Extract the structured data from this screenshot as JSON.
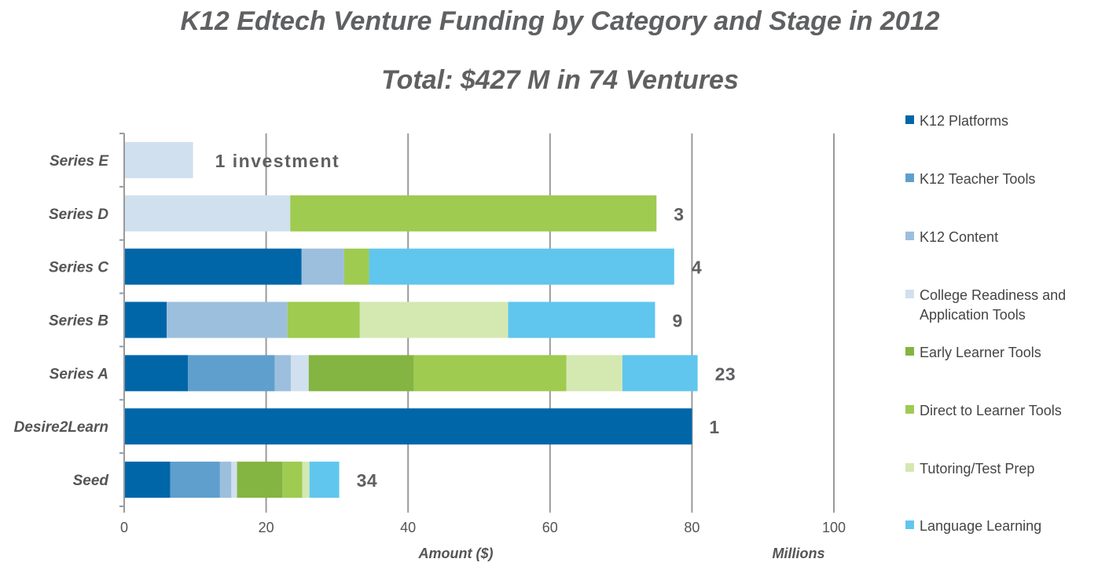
{
  "title": "K12 Edtech Venture Funding by Category and Stage in 2012",
  "subtitle": "Total: $427 M in 74 Ventures",
  "chart_data": {
    "type": "bar",
    "orientation": "horizontal",
    "stacked": true,
    "title": "K12 Edtech Venture Funding by Category and Stage in 2012",
    "subtitle": "Total: $427 M in 74 Ventures",
    "xlabel": "Amount ($)",
    "x_unit_label": "Millions",
    "xlim": [
      0,
      100
    ],
    "xticks": [
      0,
      20,
      40,
      60,
      80,
      100
    ],
    "grid": "vertical",
    "legend_position": "right",
    "categories": [
      "Series E",
      "Series D",
      "Series C",
      "Series B",
      "Series A",
      "Desire2Learn",
      "Seed"
    ],
    "count_labels": [
      "1 investment",
      "3",
      "4",
      "9",
      "23",
      "1",
      "34"
    ],
    "series": [
      {
        "name": "K12 Platforms",
        "color": "#0066a8",
        "values": [
          0,
          0,
          25,
          6,
          9,
          80,
          6.5
        ]
      },
      {
        "name": "K12 Teacher Tools",
        "color": "#5f9fcd",
        "values": [
          0,
          0,
          0,
          0,
          12.2,
          0,
          7
        ]
      },
      {
        "name": "K12 Content",
        "color": "#9cbfdd",
        "values": [
          0,
          0,
          6,
          17,
          2.3,
          0,
          1.6
        ]
      },
      {
        "name": "College Readiness and Application Tools",
        "color": "#d0e0ee",
        "values": [
          9.7,
          23.4,
          0,
          0,
          2.5,
          0,
          0.8
        ]
      },
      {
        "name": "Early Learner Tools",
        "color": "#84b441",
        "values": [
          0,
          0,
          0,
          0,
          14.8,
          0,
          6.4
        ]
      },
      {
        "name": "Direct to Learner Tools",
        "color": "#9ecb50",
        "values": [
          0,
          51.6,
          3.5,
          10.2,
          21.5,
          0,
          2.8
        ]
      },
      {
        "name": "Tutoring/Test Prep",
        "color": "#d4e8b2",
        "values": [
          0,
          0,
          0,
          20.9,
          7.9,
          0,
          1
        ]
      },
      {
        "name": "Language Learning",
        "color": "#60c6ee",
        "values": [
          0,
          0,
          43,
          20.7,
          10.6,
          0,
          4.2
        ]
      }
    ]
  }
}
